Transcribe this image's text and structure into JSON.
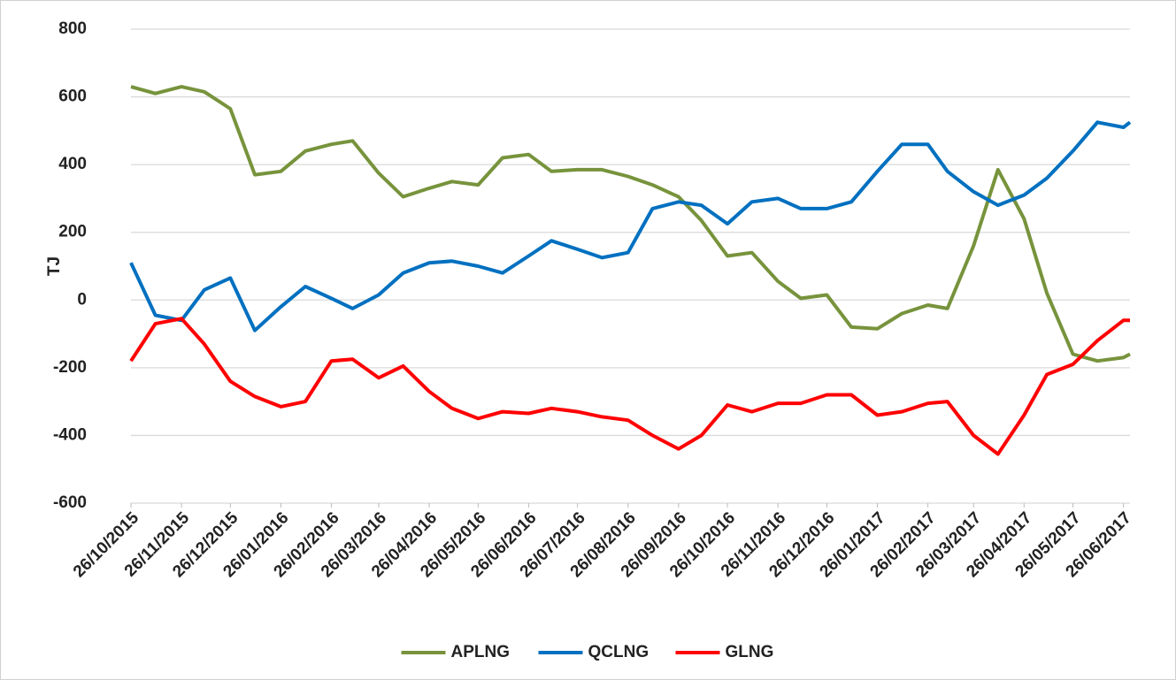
{
  "chart_data": {
    "type": "line",
    "y_label": "TJ",
    "x": [
      "26/10/2015",
      "10/11/2015",
      "26/11/2015",
      "10/12/2015",
      "26/12/2015",
      "10/01/2016",
      "26/01/2016",
      "10/02/2016",
      "26/02/2016",
      "10/03/2016",
      "26/03/2016",
      "10/04/2016",
      "26/04/2016",
      "10/05/2016",
      "26/05/2016",
      "10/06/2016",
      "26/06/2016",
      "10/07/2016",
      "26/07/2016",
      "10/08/2016",
      "26/08/2016",
      "10/09/2016",
      "26/09/2016",
      "10/10/2016",
      "26/10/2016",
      "10/11/2016",
      "26/11/2016",
      "10/12/2016",
      "26/12/2016",
      "10/01/2017",
      "26/01/2017",
      "10/02/2017",
      "26/02/2017",
      "10/03/2017",
      "26/03/2017",
      "10/04/2017",
      "26/04/2017",
      "10/05/2017",
      "26/05/2017",
      "10/06/2017",
      "26/06/2017",
      "30/06/2017"
    ],
    "series": [
      {
        "name": "APLNG",
        "color": "#77933c",
        "values": [
          630,
          610,
          630,
          615,
          565,
          370,
          380,
          440,
          460,
          470,
          375,
          305,
          330,
          350,
          340,
          420,
          430,
          380,
          385,
          385,
          365,
          340,
          305,
          235,
          130,
          140,
          55,
          5,
          15,
          -80,
          -85,
          -40,
          -15,
          -25,
          160,
          385,
          240,
          20,
          -160,
          -180,
          -170,
          -160
        ]
      },
      {
        "name": "QCLNG",
        "color": "#0070c0",
        "values": [
          110,
          -45,
          -60,
          30,
          65,
          -90,
          -20,
          40,
          5,
          -25,
          15,
          80,
          110,
          115,
          100,
          80,
          130,
          175,
          150,
          125,
          140,
          270,
          290,
          280,
          225,
          290,
          300,
          270,
          270,
          290,
          380,
          460,
          460,
          380,
          320,
          280,
          310,
          360,
          440,
          525,
          510,
          525
        ]
      },
      {
        "name": "GLNG",
        "color": "#ff0000",
        "values": [
          -180,
          -70,
          -55,
          -130,
          -240,
          -285,
          -315,
          -300,
          -180,
          -175,
          -230,
          -195,
          -270,
          -320,
          -350,
          -330,
          -335,
          -320,
          -330,
          -345,
          -355,
          -400,
          -440,
          -400,
          -310,
          -330,
          -305,
          -305,
          -280,
          -280,
          -340,
          -330,
          -305,
          -300,
          -400,
          -455,
          -340,
          -220,
          -190,
          -120,
          -60,
          -60
        ]
      }
    ],
    "xlim": [
      "26/10/2015",
      "30/06/2017"
    ],
    "xticks": [
      "26/10/2015",
      "26/11/2015",
      "26/12/2015",
      "26/01/2016",
      "26/02/2016",
      "26/03/2016",
      "26/04/2016",
      "26/05/2016",
      "26/06/2016",
      "26/07/2016",
      "26/08/2016",
      "26/09/2016",
      "26/10/2016",
      "26/11/2016",
      "26/12/2016",
      "26/01/2017",
      "26/02/2017",
      "26/03/2017",
      "26/04/2017",
      "26/05/2017",
      "26/06/2017"
    ],
    "ylim": [
      -600,
      800
    ],
    "yticks": [
      -600,
      -400,
      -200,
      0,
      200,
      400,
      600,
      800
    ],
    "grid": true,
    "legend": "bottom"
  }
}
